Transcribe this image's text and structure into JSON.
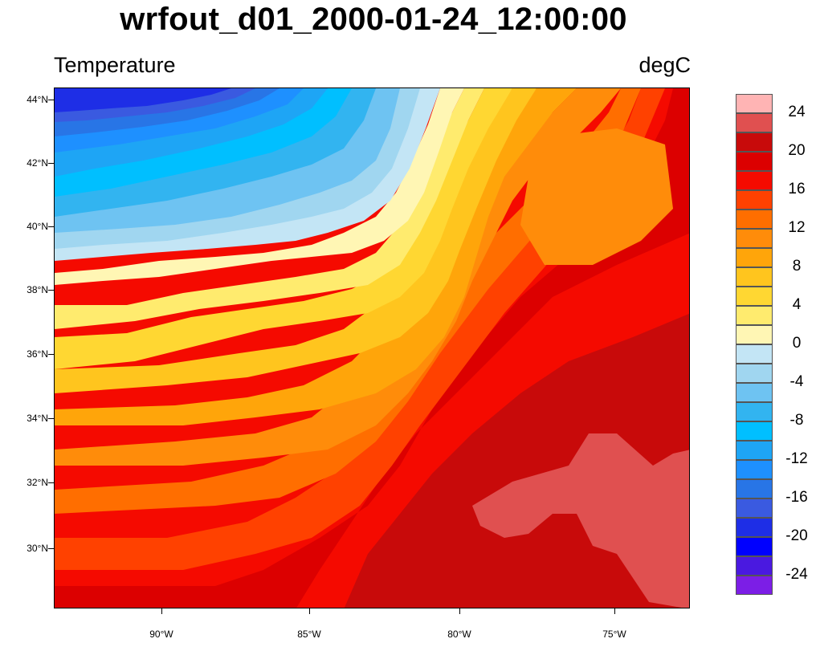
{
  "title": "wrfout_d01_2000-01-24_12:00:00",
  "left_string": "Temperature",
  "right_string": "degC",
  "map": {
    "lat_labels": [
      "44°N",
      "42°N",
      "40°N",
      "38°N",
      "36°N",
      "34°N",
      "32°N",
      "30°N"
    ],
    "lon_labels": [
      "90°W",
      "85°W",
      "80°W",
      "75°W"
    ]
  },
  "colorbar": {
    "colors": [
      "#7c1ee6",
      "#4a19e0",
      "#0000ff",
      "#1e2ee6",
      "#3a5ae0",
      "#2875e6",
      "#1e90ff",
      "#1ea5f5",
      "#00bfff",
      "#32b4f0",
      "#6ec3f2",
      "#a0d6f0",
      "#c3e5f5",
      "#fff6b4",
      "#ffeb6e",
      "#ffd732",
      "#ffc51e",
      "#ffa50a",
      "#ff8c0a",
      "#ff6e00",
      "#ff4100",
      "#f50a00",
      "#dc0000",
      "#c80a0a",
      "#e05050",
      "#ffb4b4"
    ],
    "labels": [
      "-24",
      "-20",
      "-16",
      "-12",
      "-8",
      "-4",
      "0",
      "4",
      "8",
      "12",
      "16",
      "20",
      "24"
    ]
  }
}
